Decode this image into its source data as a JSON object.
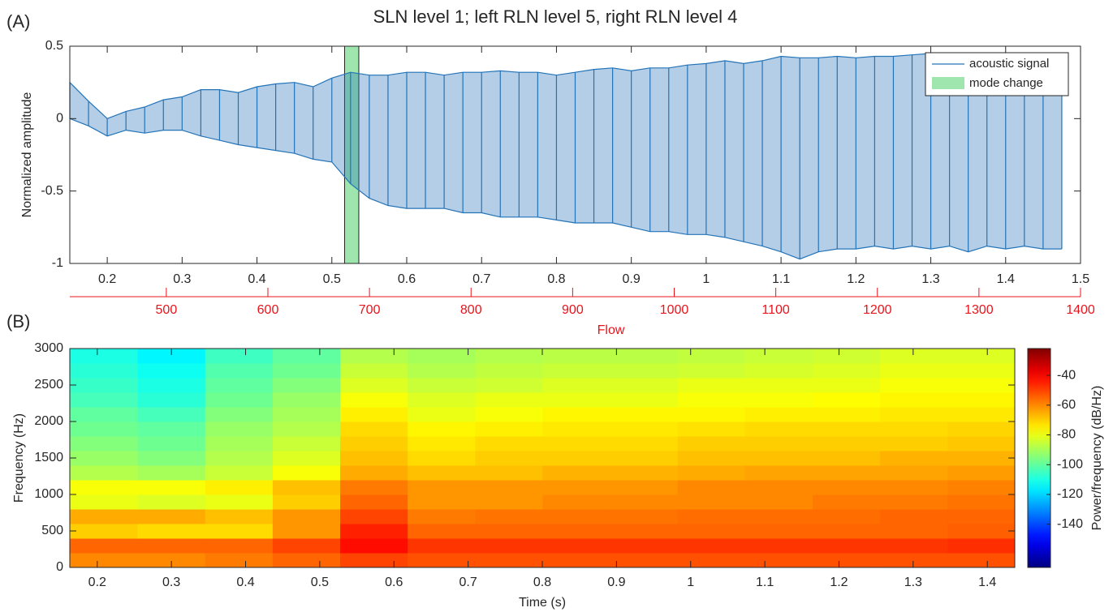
{
  "chart_data": [
    {
      "type": "line",
      "panel": "(A)",
      "title": "SLN level 1; left RLN level 5, right RLN level 4",
      "ylabel": "Normalized amplitude",
      "xlim": [
        0.15,
        1.5
      ],
      "xticks": [
        0.2,
        0.3,
        0.4,
        0.5,
        0.6,
        0.7,
        0.8,
        0.9,
        1,
        1.1,
        1.2,
        1.3,
        1.4,
        1.5
      ],
      "ylim": [
        -1,
        0.5
      ],
      "yticks": [
        -1,
        -0.5,
        0,
        0.5
      ],
      "x2label": "Flow",
      "x2color": "#e8141c",
      "x2lim": [
        405,
        1400
      ],
      "x2ticks": [
        500,
        600,
        700,
        800,
        900,
        1000,
        1100,
        1200,
        1300,
        1400
      ],
      "legend": "upper right",
      "x": [
        0.15,
        0.175,
        0.2,
        0.225,
        0.25,
        0.275,
        0.3,
        0.325,
        0.35,
        0.375,
        0.4,
        0.425,
        0.45,
        0.475,
        0.5,
        0.525,
        0.55,
        0.575,
        0.6,
        0.625,
        0.65,
        0.675,
        0.7,
        0.725,
        0.75,
        0.775,
        0.8,
        0.825,
        0.85,
        0.875,
        0.9,
        0.925,
        0.95,
        0.975,
        1.0,
        1.025,
        1.05,
        1.075,
        1.1,
        1.125,
        1.15,
        1.175,
        1.2,
        1.225,
        1.25,
        1.275,
        1.3,
        1.325,
        1.35,
        1.375,
        1.4,
        1.425,
        1.45,
        1.475
      ],
      "series": [
        {
          "name": "acoustic signal",
          "color": "#2474b8",
          "upper": [
            0.25,
            0.12,
            0.0,
            0.05,
            0.08,
            0.13,
            0.15,
            0.2,
            0.2,
            0.18,
            0.22,
            0.24,
            0.25,
            0.22,
            0.28,
            0.32,
            0.3,
            0.3,
            0.32,
            0.32,
            0.3,
            0.32,
            0.32,
            0.33,
            0.32,
            0.32,
            0.3,
            0.32,
            0.34,
            0.35,
            0.33,
            0.35,
            0.35,
            0.37,
            0.38,
            0.4,
            0.38,
            0.4,
            0.43,
            0.42,
            0.42,
            0.43,
            0.42,
            0.43,
            0.43,
            0.44,
            0.45,
            0.43,
            0.43,
            0.44,
            0.44,
            0.45,
            0.45,
            0.44
          ],
          "lower": [
            0.0,
            -0.05,
            -0.12,
            -0.08,
            -0.1,
            -0.08,
            -0.08,
            -0.12,
            -0.15,
            -0.18,
            -0.2,
            -0.22,
            -0.24,
            -0.28,
            -0.3,
            -0.45,
            -0.55,
            -0.6,
            -0.62,
            -0.62,
            -0.62,
            -0.65,
            -0.65,
            -0.68,
            -0.68,
            -0.68,
            -0.7,
            -0.72,
            -0.72,
            -0.72,
            -0.75,
            -0.78,
            -0.78,
            -0.8,
            -0.8,
            -0.82,
            -0.85,
            -0.88,
            -0.92,
            -0.97,
            -0.92,
            -0.9,
            -0.9,
            -0.88,
            -0.9,
            -0.88,
            -0.9,
            -0.88,
            -0.92,
            -0.88,
            -0.9,
            -0.88,
            -0.9,
            -0.9
          ]
        }
      ],
      "spans": [
        {
          "name": "mode change",
          "color": "#9ee6ae",
          "xrange": [
            0.517,
            0.536
          ]
        }
      ]
    },
    {
      "type": "heatmap",
      "panel": "(B)",
      "xlabel": "Time (s)",
      "ylabel": "Frequency (Hz)",
      "xlim": [
        0.163,
        1.437
      ],
      "xticks": [
        0.2,
        0.3,
        0.4,
        0.5,
        0.6,
        0.7,
        0.8,
        0.9,
        1,
        1.1,
        1.2,
        1.3,
        1.4
      ],
      "ylim": [
        0,
        3000
      ],
      "yticks": [
        0,
        500,
        1000,
        1500,
        2000,
        2500,
        3000
      ],
      "x": [
        0.209,
        0.3,
        0.391,
        0.482,
        0.573,
        0.664,
        0.755,
        0.846,
        0.937,
        1.028,
        1.119,
        1.21,
        1.301,
        1.392
      ],
      "y": [
        100,
        300,
        500,
        700,
        900,
        1100,
        1300,
        1500,
        1700,
        1900,
        2100,
        2300,
        2500,
        2700,
        2900
      ],
      "z": [
        [
          -60,
          -60,
          -58,
          -55,
          -50,
          -52,
          -52,
          -52,
          -52,
          -52,
          -52,
          -52,
          -52,
          -52
        ],
        [
          -55,
          -55,
          -55,
          -50,
          -42,
          -48,
          -48,
          -48,
          -48,
          -48,
          -48,
          -48,
          -48,
          -47
        ],
        [
          -70,
          -72,
          -72,
          -62,
          -45,
          -55,
          -55,
          -55,
          -55,
          -55,
          -55,
          -55,
          -55,
          -54
        ],
        [
          -65,
          -65,
          -68,
          -62,
          -50,
          -58,
          -57,
          -57,
          -57,
          -56,
          -56,
          -56,
          -55,
          -55
        ],
        [
          -80,
          -82,
          -80,
          -70,
          -55,
          -62,
          -62,
          -60,
          -60,
          -60,
          -60,
          -58,
          -58,
          -57
        ],
        [
          -78,
          -78,
          -75,
          -68,
          -58,
          -62,
          -62,
          -62,
          -62,
          -60,
          -60,
          -60,
          -60,
          -59
        ],
        [
          -88,
          -90,
          -85,
          -78,
          -65,
          -68,
          -68,
          -66,
          -66,
          -65,
          -64,
          -64,
          -64,
          -63
        ],
        [
          -92,
          -95,
          -88,
          -82,
          -68,
          -72,
          -70,
          -70,
          -70,
          -68,
          -68,
          -68,
          -66,
          -66
        ],
        [
          -95,
          -98,
          -90,
          -85,
          -70,
          -74,
          -72,
          -72,
          -72,
          -70,
          -70,
          -70,
          -70,
          -69
        ],
        [
          -98,
          -100,
          -92,
          -88,
          -72,
          -76,
          -75,
          -74,
          -74,
          -73,
          -72,
          -72,
          -72,
          -71
        ],
        [
          -100,
          -104,
          -95,
          -90,
          -75,
          -80,
          -78,
          -76,
          -76,
          -76,
          -75,
          -75,
          -74,
          -74
        ],
        [
          -104,
          -108,
          -98,
          -92,
          -78,
          -82,
          -80,
          -80,
          -80,
          -78,
          -78,
          -77,
          -76,
          -76
        ],
        [
          -106,
          -110,
          -100,
          -95,
          -82,
          -85,
          -84,
          -82,
          -82,
          -80,
          -80,
          -80,
          -78,
          -78
        ],
        [
          -108,
          -112,
          -102,
          -98,
          -85,
          -88,
          -86,
          -85,
          -85,
          -84,
          -83,
          -82,
          -80,
          -80
        ],
        [
          -110,
          -115,
          -105,
          -100,
          -88,
          -90,
          -88,
          -87,
          -87,
          -86,
          -85,
          -84,
          -82,
          -82
        ]
      ],
      "colormap": "jet",
      "colorbar": {
        "label": "Power/frequency (dB/Hz)",
        "clim": [
          -169,
          -22
        ],
        "ticks": [
          -40,
          -60,
          -80,
          -100,
          -120,
          -140
        ]
      }
    }
  ]
}
